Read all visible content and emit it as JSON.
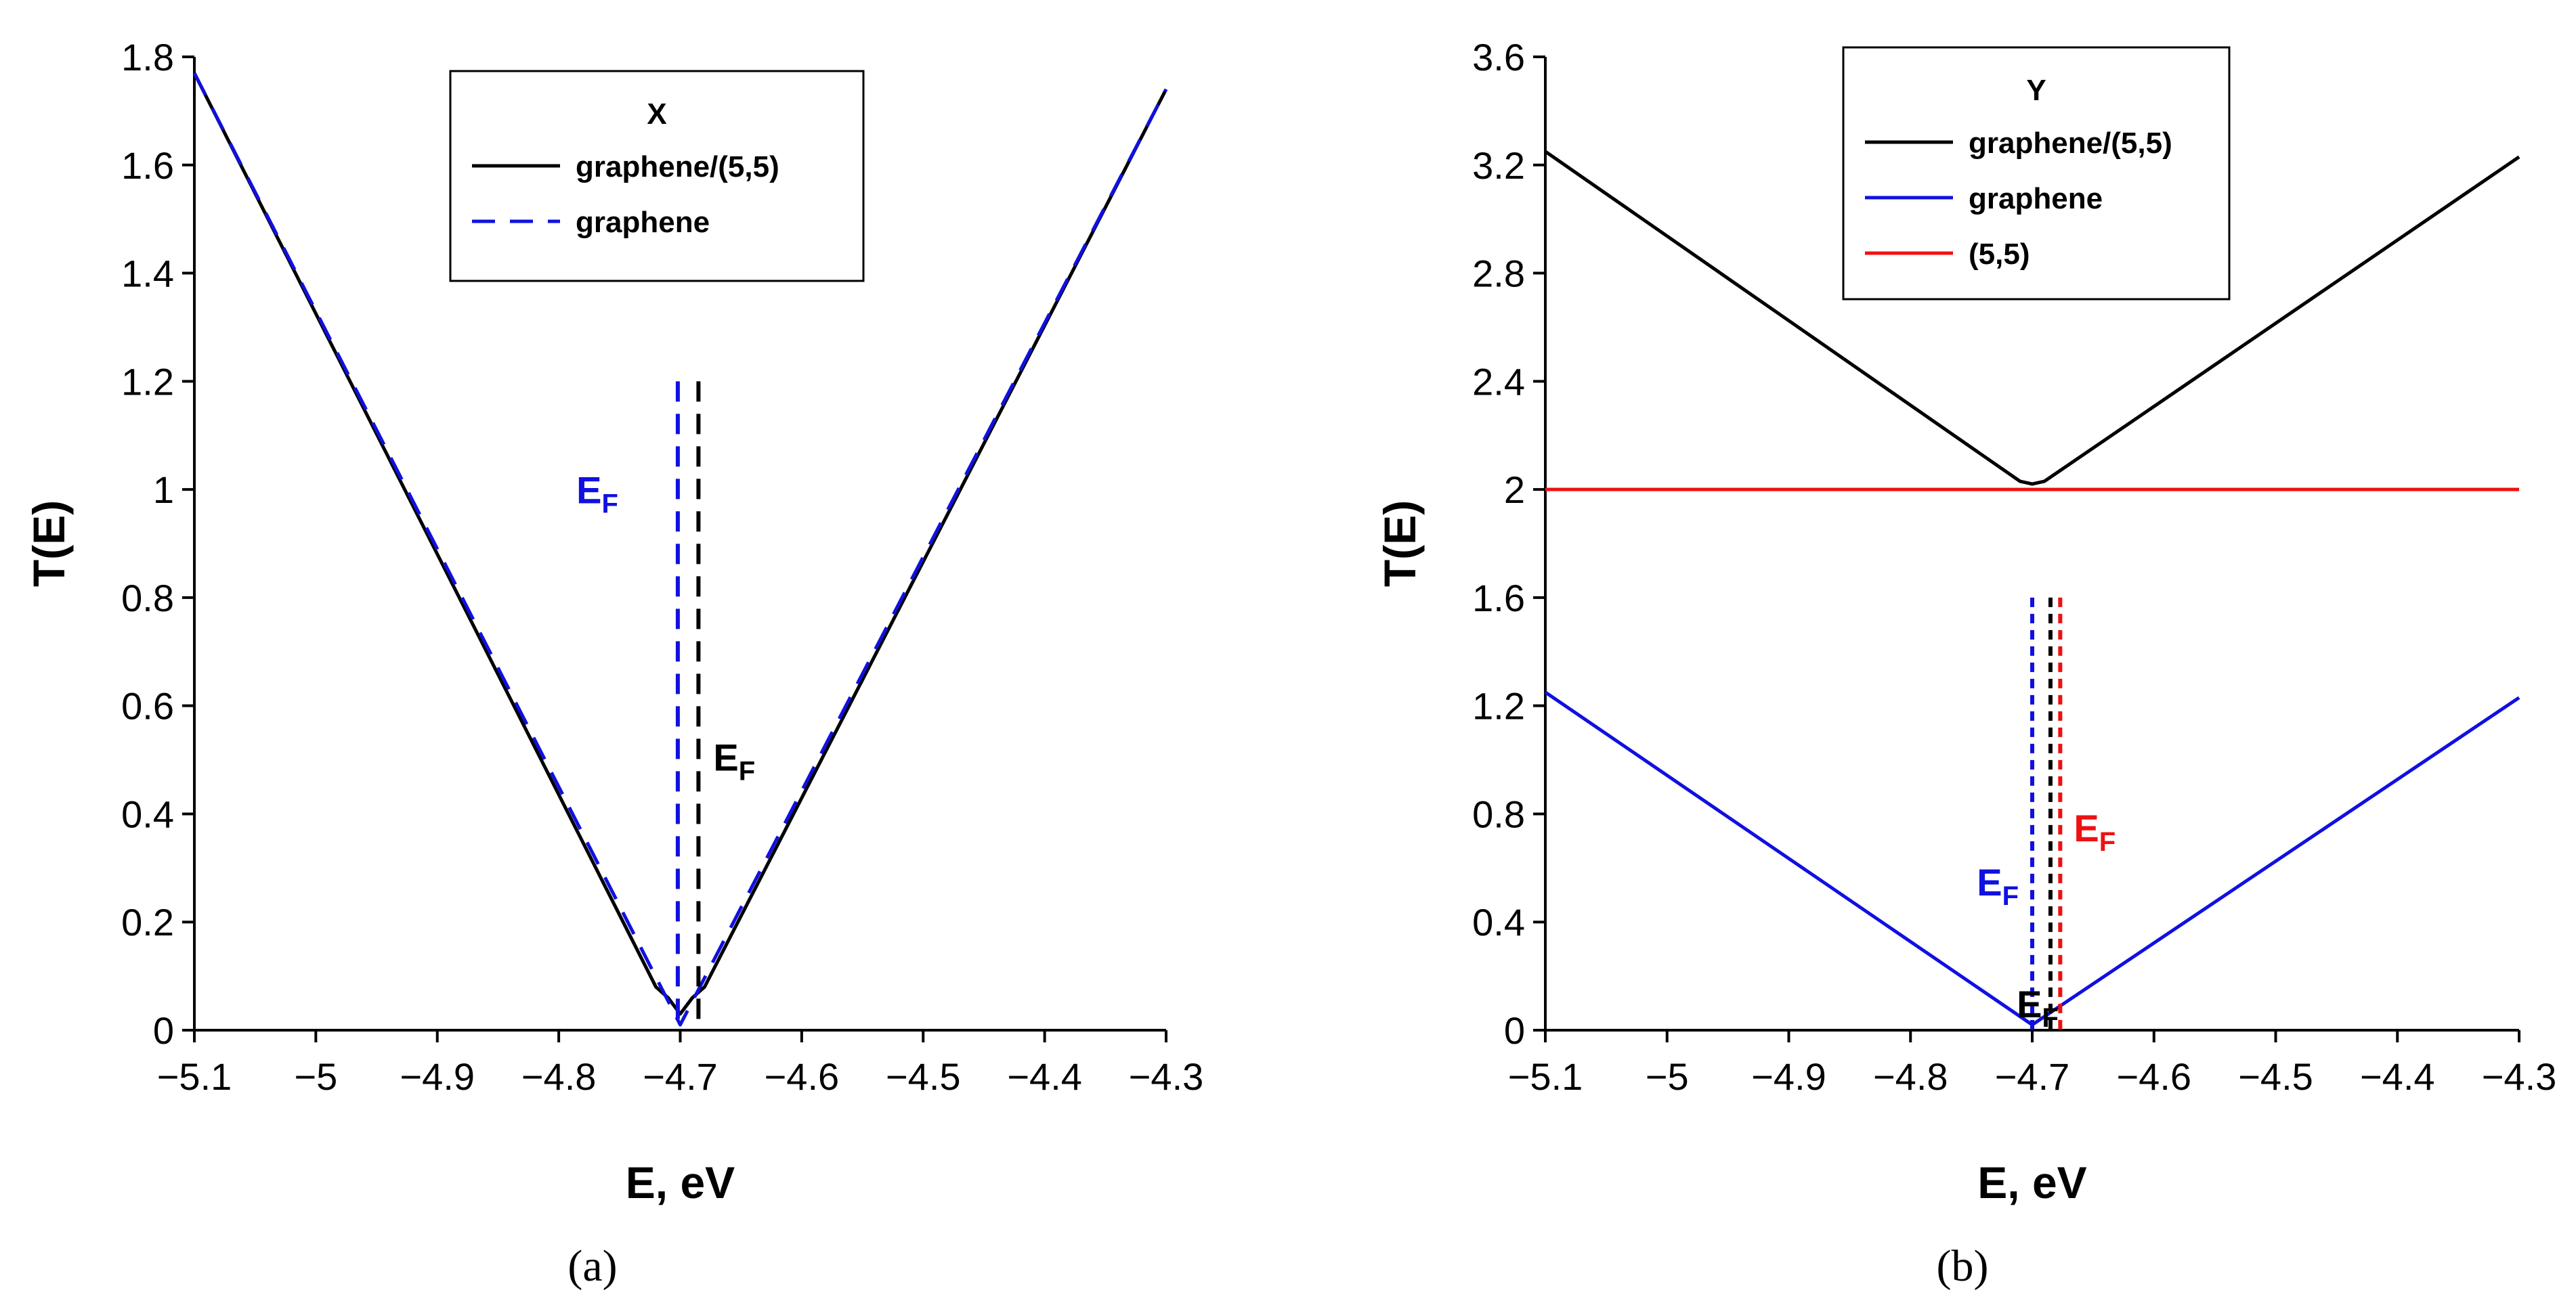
{
  "colors": {
    "black": "#000000",
    "blue": "#1010e0",
    "red": "#ee1111"
  },
  "chart_data": [
    {
      "type": "line",
      "panel_label": "(a)",
      "xlabel": "E, eV",
      "ylabel": "T(E)",
      "xlim": [
        -5.1,
        -4.3
      ],
      "ylim": [
        0,
        1.8
      ],
      "x_ticks": [
        -5.1,
        -5.0,
        -4.9,
        -4.8,
        -4.7,
        -4.6,
        -4.5,
        -4.4,
        -4.3
      ],
      "x_tick_labels": [
        "−5.1",
        "−5",
        "−4.9",
        "−4.8",
        "−4.7",
        "−4.6",
        "−4.5",
        "−4.4",
        "−4.3"
      ],
      "y_ticks": [
        0,
        0.2,
        0.4,
        0.6,
        0.8,
        1.0,
        1.2,
        1.4,
        1.6,
        1.8
      ],
      "y_tick_labels": [
        "0",
        "0.2",
        "0.4",
        "0.6",
        "0.8",
        "1",
        "1.2",
        "1.4",
        "1.6",
        "1.8"
      ],
      "legend": {
        "title": "X",
        "placement": "top-center"
      },
      "series": [
        {
          "name": "graphene/(5,5)",
          "color": "#000000",
          "style": "solid",
          "x": [
            -5.1,
            -4.72,
            -4.71,
            -4.7,
            -4.69,
            -4.68,
            -4.3
          ],
          "y": [
            1.77,
            0.08,
            0.06,
            0.03,
            0.06,
            0.08,
            1.74
          ]
        },
        {
          "name": "graphene",
          "color": "#1010e0",
          "style": "dashed",
          "x": [
            -5.1,
            -4.7,
            -4.3
          ],
          "y": [
            1.77,
            0.01,
            1.74
          ]
        }
      ],
      "fermi_markers": [
        {
          "label": "E",
          "sub": "F",
          "x": -4.702,
          "color": "#1010e0",
          "y_top": 1.2
        },
        {
          "label": "E",
          "sub": "F",
          "x": -4.685,
          "color": "#000000",
          "y_top": 1.2
        }
      ]
    },
    {
      "type": "line",
      "panel_label": "(b)",
      "xlabel": "E, eV",
      "ylabel": "T(E)",
      "xlim": [
        -5.1,
        -4.3
      ],
      "ylim": [
        0,
        3.6
      ],
      "x_ticks": [
        -5.1,
        -5.0,
        -4.9,
        -4.8,
        -4.7,
        -4.6,
        -4.5,
        -4.4,
        -4.3
      ],
      "x_tick_labels": [
        "−5.1",
        "−5",
        "−4.9",
        "−4.8",
        "−4.7",
        "−4.6",
        "−4.5",
        "−4.4",
        "−4.3"
      ],
      "y_ticks": [
        0,
        0.4,
        0.8,
        1.2,
        1.6,
        2.0,
        2.4,
        2.8,
        3.2,
        3.6
      ],
      "y_tick_labels": [
        "0",
        "0.4",
        "0.8",
        "1.2",
        "1.6",
        "2",
        "2.4",
        "2.8",
        "3.2",
        "3.6"
      ],
      "legend": {
        "title": "Y",
        "placement": "top-center"
      },
      "series": [
        {
          "name": "graphene/(5,5)",
          "color": "#000000",
          "style": "solid",
          "x": [
            -5.1,
            -4.71,
            -4.7,
            -4.69,
            -4.3
          ],
          "y": [
            3.25,
            2.03,
            2.02,
            2.03,
            3.23
          ]
        },
        {
          "name": "graphene",
          "color": "#1010e0",
          "style": "solid",
          "x": [
            -5.1,
            -4.7,
            -4.3
          ],
          "y": [
            1.25,
            0.02,
            1.23
          ]
        },
        {
          "name": "(5,5)",
          "color": "#ee1111",
          "style": "solid",
          "x": [
            -5.1,
            -4.3
          ],
          "y": [
            2.0,
            2.0
          ]
        }
      ],
      "fermi_markers": [
        {
          "label": "E",
          "sub": "F",
          "x": -4.7,
          "color": "#1010e0",
          "y_top": 1.6
        },
        {
          "label": "E",
          "sub": "F",
          "x": -4.685,
          "color": "#000000",
          "y_top": 1.6
        },
        {
          "label": "E",
          "sub": "F",
          "x": -4.677,
          "color": "#ee1111",
          "y_top": 1.6
        }
      ]
    }
  ]
}
